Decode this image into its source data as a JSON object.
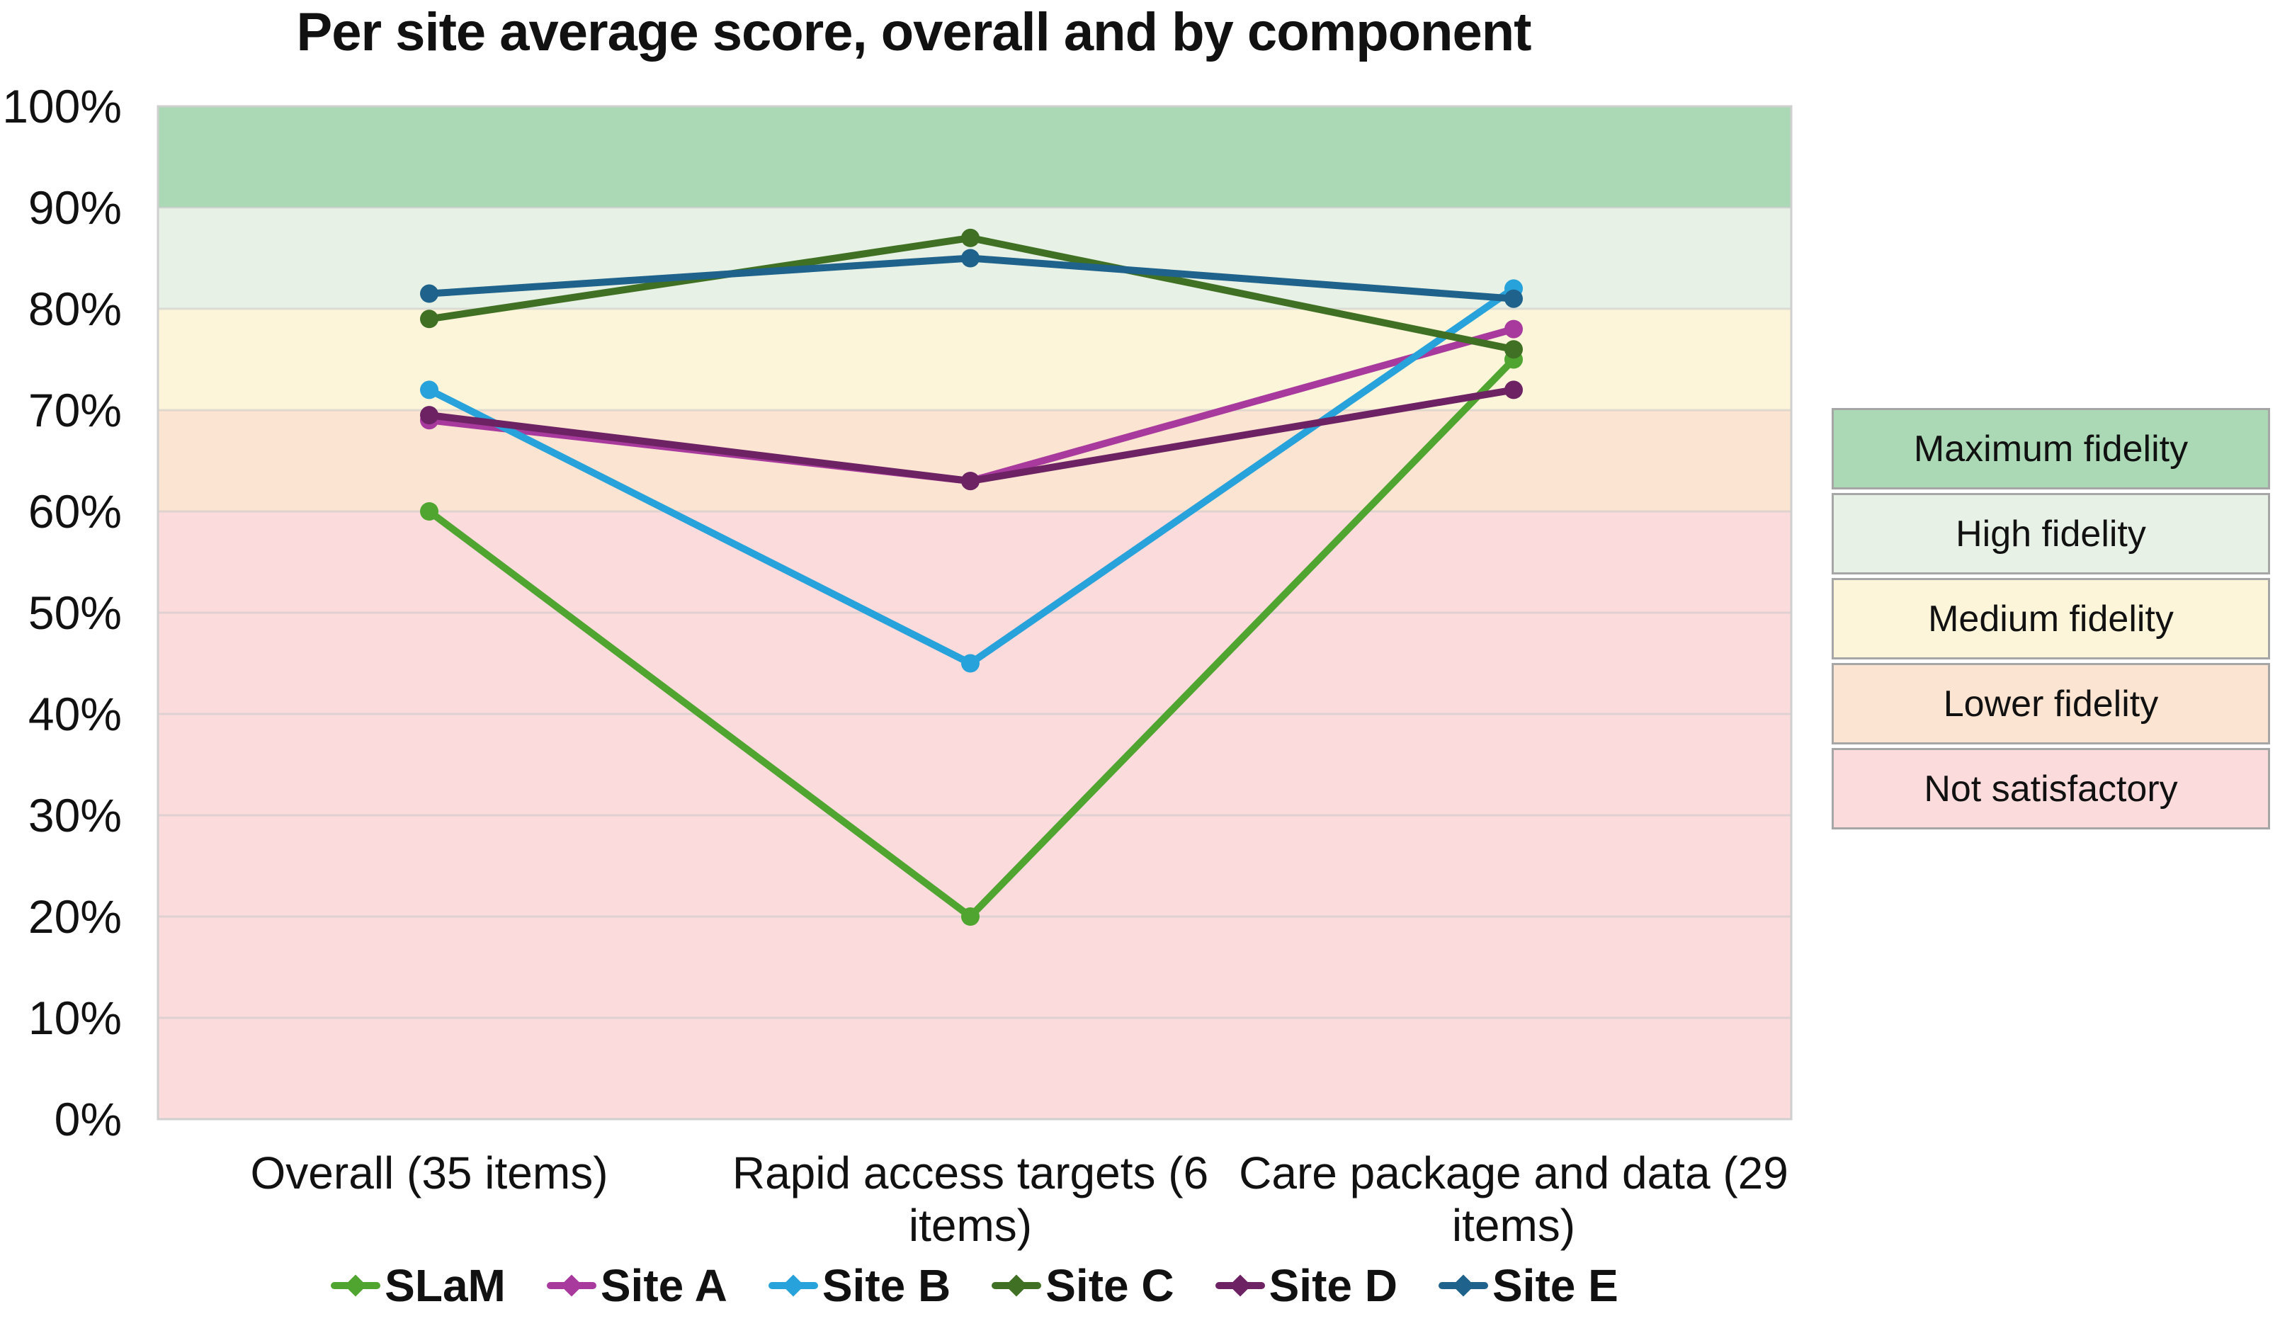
{
  "title": "Per site average score, overall and by component",
  "chart_data": {
    "type": "line",
    "title": "Per site average score, overall and by component",
    "categories": [
      "Overall (35 items)",
      "Rapid access targets (6 items)",
      "Care package and data (29 items)"
    ],
    "category_label_lines": [
      [
        "Overall (35 items)"
      ],
      [
        "Rapid access targets (6",
        "items)"
      ],
      [
        "Care package and data (29",
        "items)"
      ]
    ],
    "y_axis": {
      "min": 0,
      "max": 100,
      "step": 10,
      "tick_suffix": "%"
    },
    "ylim": [
      0,
      100
    ],
    "grid": true,
    "legend_position": "bottom",
    "series": [
      {
        "name": "SLaM",
        "color": "#4fa52f",
        "values": [
          60,
          20,
          75
        ]
      },
      {
        "name": "Site A",
        "color": "#a83a9d",
        "values": [
          69,
          63,
          78
        ]
      },
      {
        "name": "Site B",
        "color": "#28a2da",
        "values": [
          72,
          45,
          82
        ]
      },
      {
        "name": "Site C",
        "color": "#3f7023",
        "values": [
          79,
          87,
          76
        ]
      },
      {
        "name": "Site D",
        "color": "#6c2263",
        "values": [
          69.5,
          63,
          72
        ]
      },
      {
        "name": "Site E",
        "color": "#1f628b",
        "values": [
          81.5,
          85,
          81
        ]
      }
    ],
    "bands": [
      {
        "label": "Maximum fidelity",
        "from": 90,
        "to": 100,
        "color": "#abd9b6"
      },
      {
        "label": "High fidelity",
        "from": 80,
        "to": 90,
        "color": "#e8f1e5"
      },
      {
        "label": "Medium fidelity",
        "from": 70,
        "to": 80,
        "color": "#fdf5da"
      },
      {
        "label": "Lower fidelity",
        "from": 60,
        "to": 70,
        "color": "#fbe4d1"
      },
      {
        "label": "Not satisfactory",
        "from": 0,
        "to": 60,
        "color": "#fbdbdb"
      }
    ],
    "gridline_color": "#c9c9c9",
    "plot_border_color": "#cfcfcf"
  }
}
